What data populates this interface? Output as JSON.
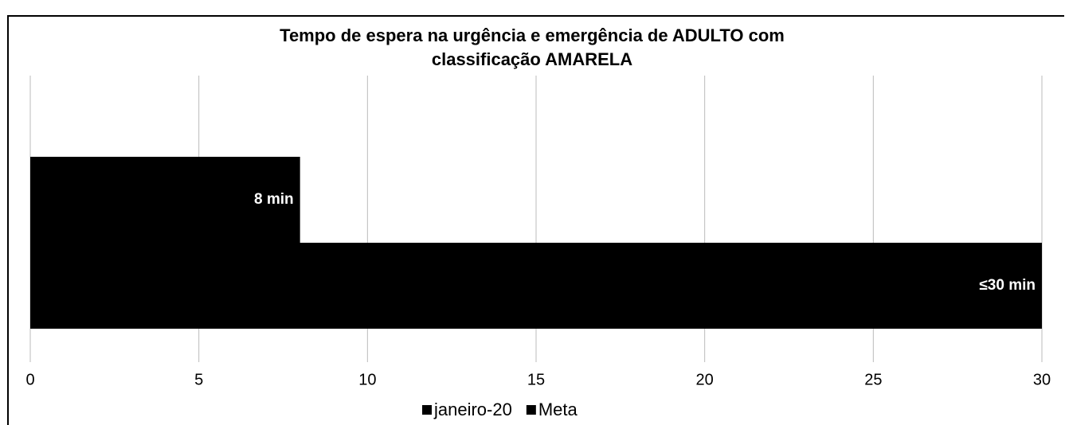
{
  "chart_data": {
    "type": "hbar",
    "title": [
      "Tempo de espera na urgência e emergência de ADULTO com",
      "classificação AMARELA"
    ],
    "categories": [
      null
    ],
    "series": [
      {
        "name": "janeiro-20",
        "color": "#000000",
        "values": [
          8
        ],
        "value_labels": [
          "8 min"
        ]
      },
      {
        "name": "Meta",
        "color": "#000000",
        "values": [
          30
        ],
        "value_labels": [
          "≤30 min"
        ]
      }
    ],
    "xlim": [
      0,
      30
    ],
    "xticks": [
      0,
      5,
      10,
      15,
      20,
      25,
      30
    ],
    "grid": true,
    "legend": "bottom"
  }
}
